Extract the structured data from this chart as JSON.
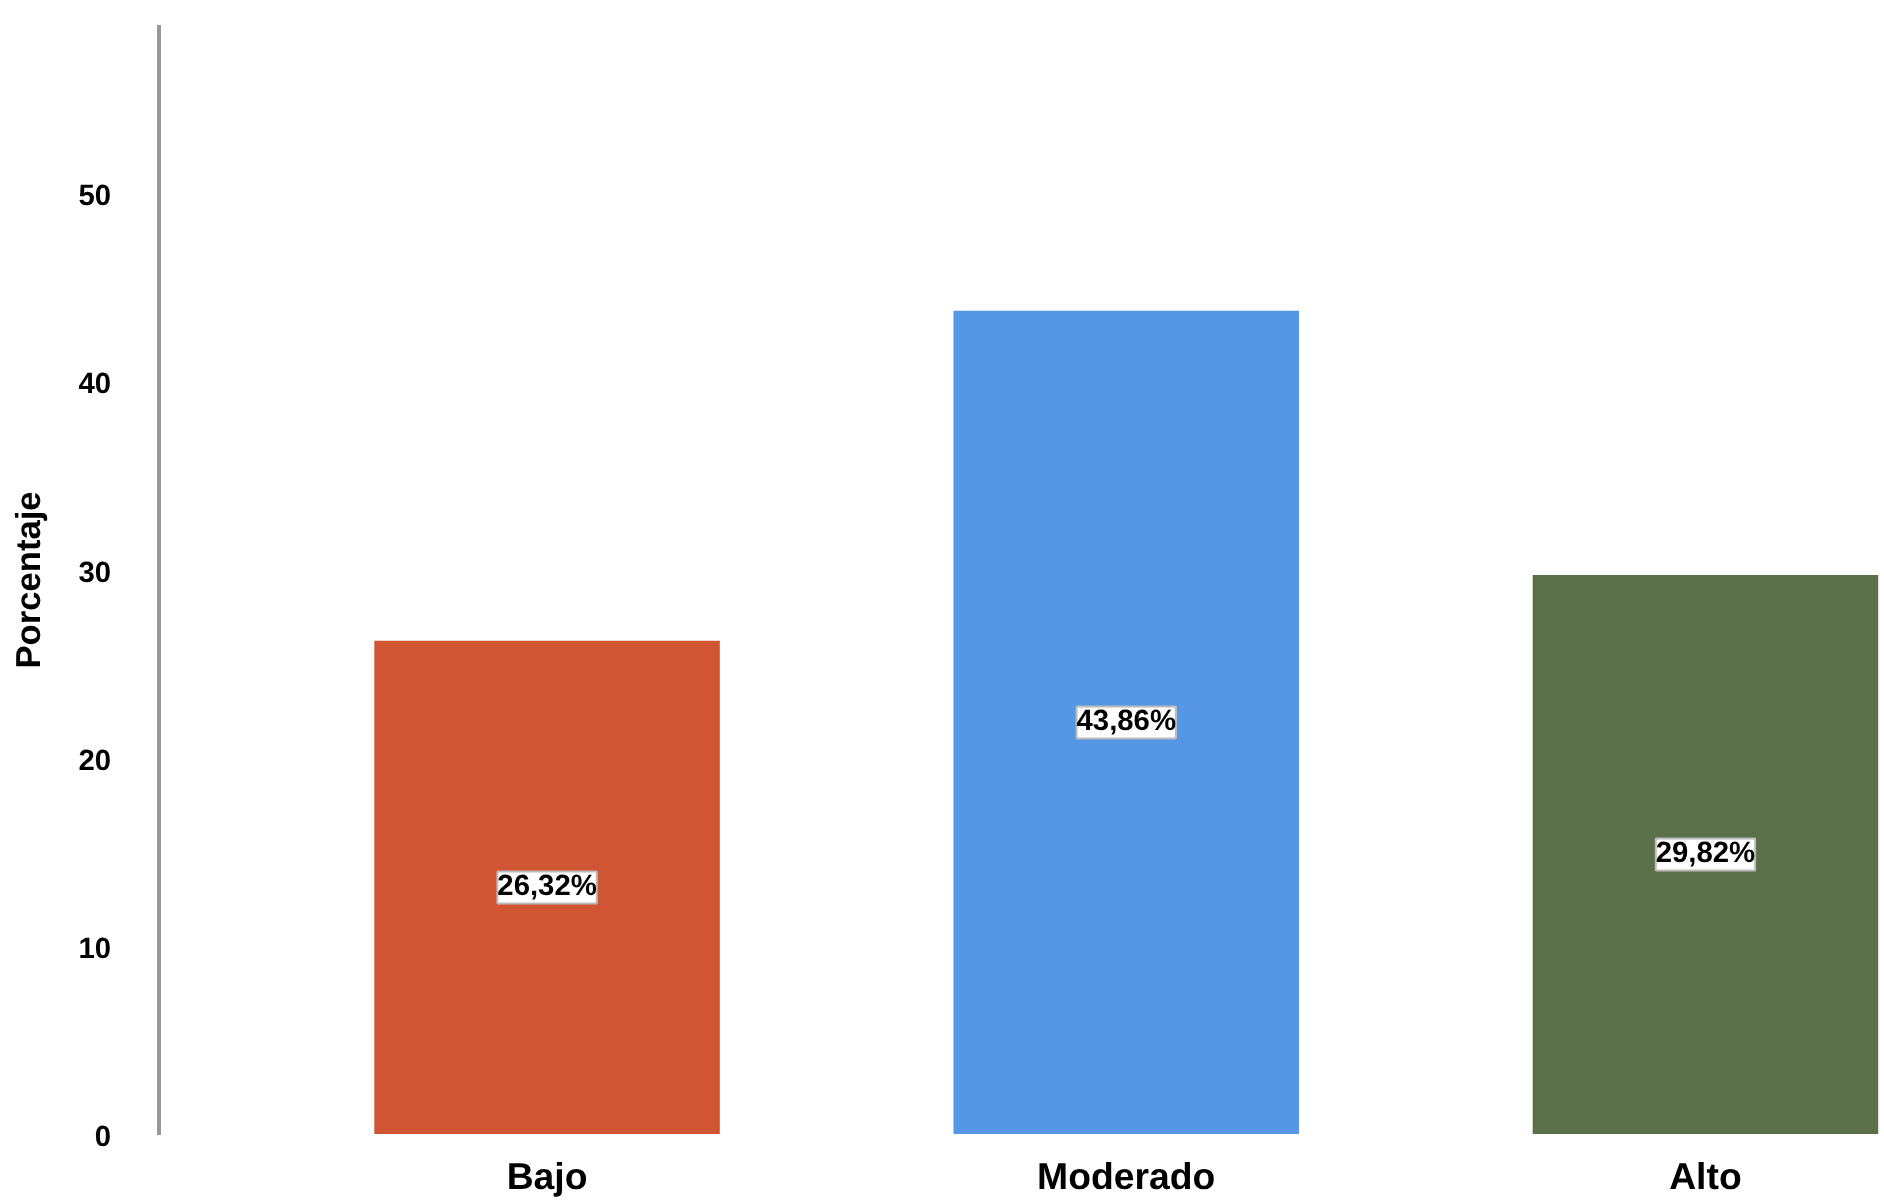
{
  "chart_data": {
    "type": "bar",
    "ylabel": "Porcentaje",
    "categories": [
      "Bajo",
      "Moderado",
      "Alto"
    ],
    "values": [
      26.32,
      43.86,
      29.82
    ],
    "colors": [
      "#d05533",
      "#5597e4",
      "#5b6f48"
    ],
    "value_labels": [
      "26,32%",
      "43,86%",
      "29,82%"
    ],
    "ylim": [
      0,
      59
    ],
    "yticks": [
      0,
      10,
      20,
      30,
      40,
      50
    ]
  }
}
